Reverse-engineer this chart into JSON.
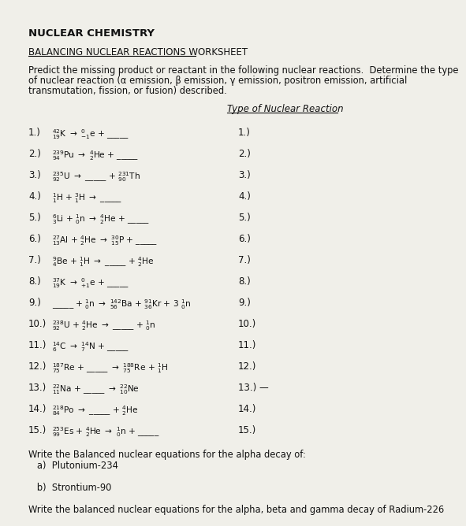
{
  "title": "NUCLEAR CHEMISTRY",
  "subtitle": "BALANCING NUCLEAR REACTIONS WORKSHEET",
  "intro1": "Predict the missing product or reactant in the following nuclear reactions.  Determine the type",
  "intro2": "of nuclear reaction (α emission, β emission, γ emission, positron emission, artificial",
  "intro3": "transmutation, fission, or fusion) described.",
  "col_header": "Type of Nuclear Reaction",
  "bg_color": "#f0efe9",
  "text_color": "#111111",
  "equations": [
    [
      "1.)",
      "$^{42}_{19}$K $\\rightarrow$ $^{0}_{-1}$e + _____",
      "1.)"
    ],
    [
      "2.)",
      "$^{239}_{94}$Pu $\\rightarrow$ $^{4}_{2}$He + _____",
      "2.)"
    ],
    [
      "3.)",
      "$^{235}_{92}$U $\\rightarrow$ _____ + $^{231}_{90}$Th",
      "3.)"
    ],
    [
      "4.)",
      "$^{1}_{1}$H + $^{3}_{1}$H $\\rightarrow$ _____",
      "4.)"
    ],
    [
      "5.)",
      "$^{6}_{3}$Li + $^{1}_{0}$n $\\rightarrow$ $^{4}_{2}$He + _____",
      "5.)"
    ],
    [
      "6.)",
      "$^{27}_{13}$Al + $^{4}_{2}$He $\\rightarrow$ $^{30}_{15}$P + _____",
      "6.)"
    ],
    [
      "7.)",
      "$^{9}_{4}$Be + $^{1}_{1}$H $\\rightarrow$ _____ + $^{4}_{2}$He",
      "7.)"
    ],
    [
      "8.)",
      "$^{37}_{19}$K $\\rightarrow$ $^{0}_{+1}$e + _____",
      "8.)"
    ],
    [
      "9.)",
      "_____ + $^{1}_{0}$n $\\rightarrow$ $^{142}_{56}$Ba + $^{91}_{36}$Kr + 3 $^{1}_{0}$n",
      "9.)"
    ],
    [
      "10.)",
      "$^{238}_{92}$U + $^{4}_{2}$He $\\rightarrow$ _____ + $^{1}_{0}$n",
      "10.)"
    ],
    [
      "11.)",
      "$^{14}_{6}$C $\\rightarrow$ $^{14}_{7}$N + _____",
      "11.)"
    ],
    [
      "12.)",
      "$^{187}_{75}$Re + _____ $\\rightarrow$ $^{188}_{75}$Re + $^{1}_{1}$H",
      "12.)"
    ],
    [
      "13.)",
      "$^{22}_{11}$Na + _____ $\\rightarrow$ $^{22}_{10}$Ne",
      "13.) —"
    ],
    [
      "14.)",
      "$^{218}_{84}$Po $\\rightarrow$ _____ + $^{4}_{2}$He",
      "14.)"
    ],
    [
      "15.)",
      "$^{253}_{99}$Es + $^{4}_{2}$He $\\rightarrow$ $^{1}_{0}$n + _____",
      "15.)"
    ]
  ],
  "footer": [
    "Write the Balanced nuclear equations for the alpha decay of:",
    "   a)  Plutonium-234",
    " ",
    "   b)  Strontium-90",
    " ",
    "Write the balanced nuclear equations for the alpha, beta and gamma decay of Radium-226"
  ]
}
